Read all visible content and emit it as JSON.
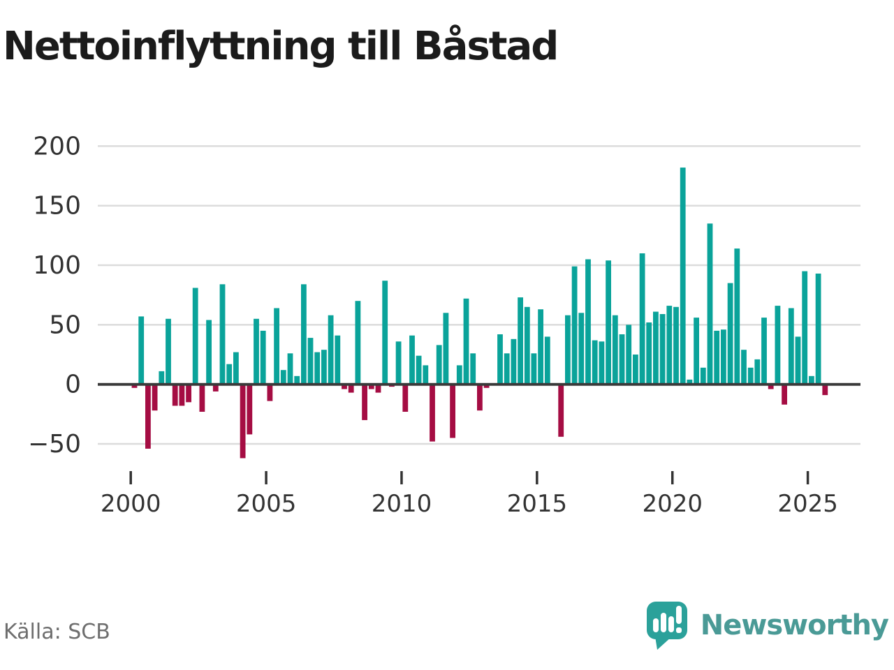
{
  "title": "Nettoinflyttning till Båstad",
  "source": "Källa: SCB",
  "brand": {
    "name": "Newsworthy",
    "icon": "newsworthy-speech-bubble-bar-chart-icon"
  },
  "colors": {
    "positive_bar": "#0aa39a",
    "negative_bar": "#a50d43",
    "gridline": "#dcdcdc",
    "zero_axis": "#3a3a3a",
    "axis_text": "#333333",
    "title_text": "#1b1b1b",
    "source_text": "#6e6e6e",
    "brand_teal": "#4a9a96",
    "logo_bubble": "#2ba19a"
  },
  "chart_data": {
    "type": "bar",
    "title": "Nettoinflyttning till Båstad",
    "frequency": "quarterly",
    "start_year": 2000,
    "start_quarter": 1,
    "values": [
      -3,
      57,
      -54,
      -22,
      11,
      55,
      -18,
      -18,
      -15,
      81,
      -23,
      54,
      -6,
      84,
      17,
      27,
      -62,
      -42,
      55,
      45,
      -14,
      64,
      12,
      26,
      7,
      84,
      39,
      27,
      29,
      58,
      41,
      -4,
      -7,
      70,
      -30,
      -4,
      -7,
      87,
      -2,
      36,
      -23,
      41,
      24,
      16,
      -48,
      33,
      60,
      -45,
      16,
      72,
      26,
      -22,
      -3,
      0,
      42,
      26,
      38,
      73,
      65,
      26,
      63,
      40,
      0,
      -44,
      58,
      99,
      60,
      105,
      37,
      36,
      104,
      58,
      42,
      50,
      25,
      110,
      52,
      61,
      59,
      66,
      65,
      182,
      4,
      56,
      14,
      135,
      45,
      46,
      85,
      114,
      29,
      14,
      21,
      56,
      -4,
      66,
      -17,
      64,
      40,
      95,
      7,
      93,
      -9
    ],
    "x_ticks": [
      {
        "year": 2000,
        "label": "2000"
      },
      {
        "year": 2005,
        "label": "2005"
      },
      {
        "year": 2010,
        "label": "2010"
      },
      {
        "year": 2015,
        "label": "2015"
      },
      {
        "year": 2020,
        "label": "2020"
      },
      {
        "year": 2025,
        "label": "2025"
      }
    ],
    "y_ticks": [
      {
        "v": 200,
        "label": "200"
      },
      {
        "v": 150,
        "label": "150"
      },
      {
        "v": 100,
        "label": "100"
      },
      {
        "v": 50,
        "label": "50"
      },
      {
        "v": 0,
        "label": "0"
      },
      {
        "v": -50,
        "label": "−50"
      }
    ],
    "ylim": [
      -70,
      210
    ],
    "grid": true,
    "legend": "none"
  }
}
